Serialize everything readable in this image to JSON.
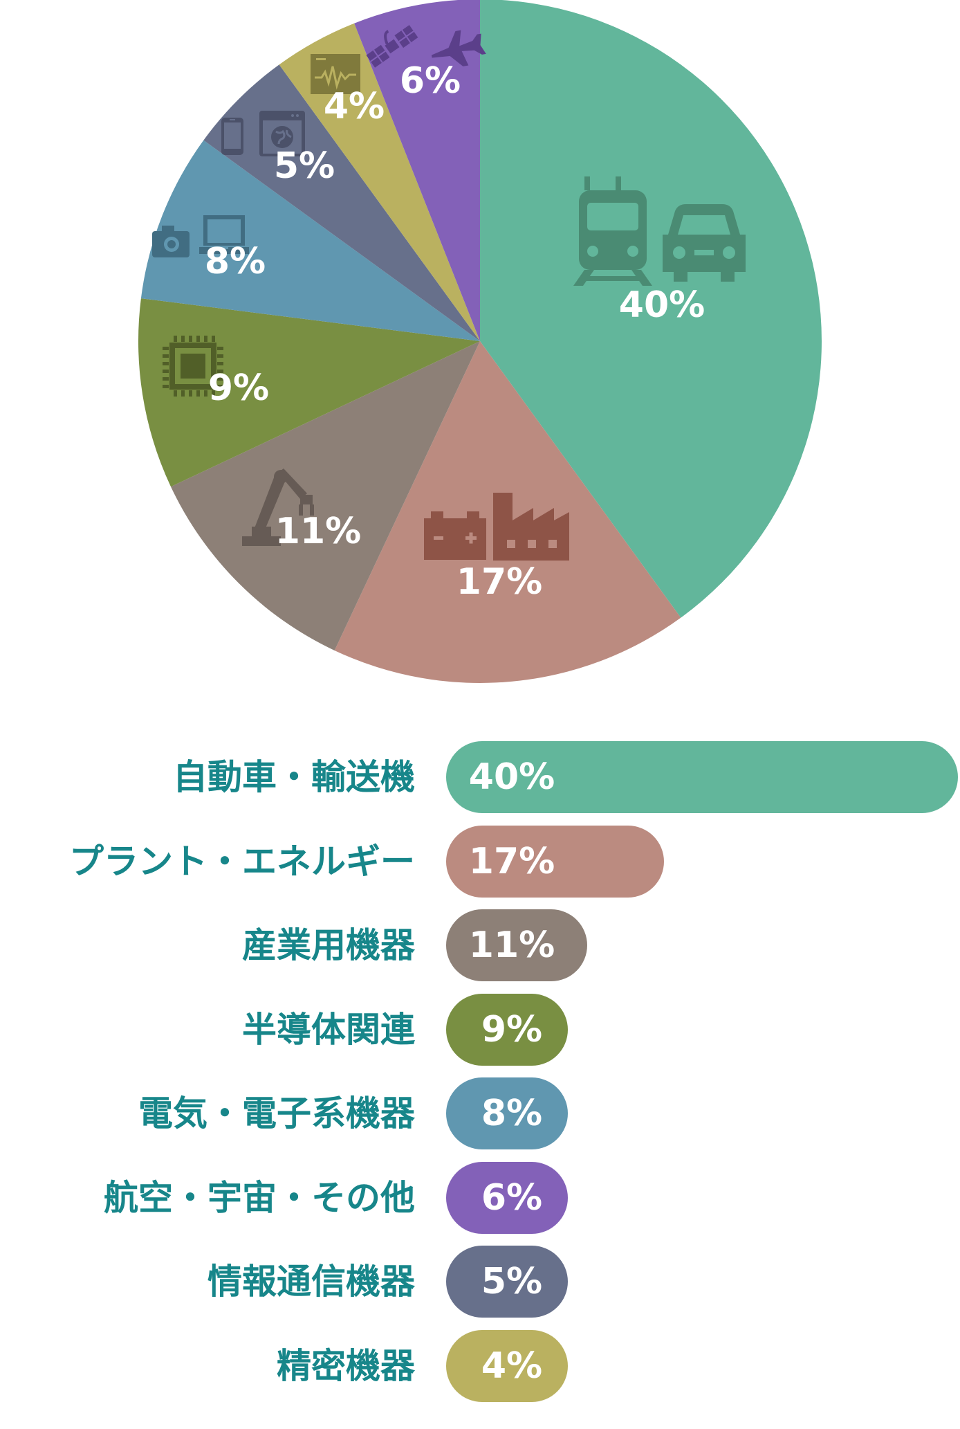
{
  "chart_data": [
    {
      "type": "pie",
      "slices": [
        {
          "key": "auto",
          "label": "自動車・輸送機",
          "value": 40,
          "value_label": "40%",
          "color": "#62b69b",
          "icons": [
            "train-icon",
            "car-icon"
          ],
          "icon_color": "#4a8b73"
        },
        {
          "key": "plant",
          "label": "プラント・エネルギー",
          "value": 17,
          "value_label": "17%",
          "color": "#bb8b80",
          "icons": [
            "battery-icon",
            "factory-icon"
          ],
          "icon_color": "#8e5447"
        },
        {
          "key": "industrial",
          "label": "産業用機器",
          "value": 11,
          "value_label": "11%",
          "color": "#8d8077",
          "icons": [
            "robot-arm-icon"
          ],
          "icon_color": "#665b55"
        },
        {
          "key": "semi",
          "label": "半導体関連",
          "value": 9,
          "value_label": "9%",
          "color": "#798f42",
          "icons": [
            "chip-icon"
          ],
          "icon_color": "#515f28"
        },
        {
          "key": "elec",
          "label": "電気・電子系機器",
          "value": 8,
          "value_label": "8%",
          "color": "#6097b0",
          "icons": [
            "camera-icon",
            "laptop-icon"
          ],
          "icon_color": "#416d82"
        },
        {
          "key": "info",
          "label": "情報通信機器",
          "value": 5,
          "value_label": "5%",
          "color": "#67708b",
          "icons": [
            "phone-icon",
            "browser-globe-icon"
          ],
          "icon_color": "#4b5169"
        },
        {
          "key": "precision",
          "label": "精密機器",
          "value": 4,
          "value_label": "4%",
          "color": "#bab160",
          "icons": [
            "monitor-waveform-icon"
          ],
          "icon_color": "#807a3c"
        },
        {
          "key": "aero",
          "label": "航空・宇宙・その他",
          "value": 6,
          "value_label": "6%",
          "color": "#8361b8",
          "icons": [
            "satellite-icon",
            "airplane-icon"
          ],
          "icon_color": "#5b3f8a"
        }
      ]
    },
    {
      "type": "bar",
      "orientation": "horizontal",
      "categories": [
        "自動車・輸送機",
        "プラント・エネルギー",
        "産業用機器",
        "半導体関連",
        "電気・電子系機器",
        "航空・宇宙・その他",
        "情報通信機器",
        "精密機器"
      ],
      "values": [
        40,
        17,
        11,
        9,
        8,
        6,
        5,
        4
      ],
      "value_labels": [
        "40%",
        "17%",
        "11%",
        "9%",
        "8%",
        "6%",
        "5%",
        "4%"
      ],
      "colors": [
        "#62b69b",
        "#bb8b80",
        "#8d8077",
        "#798f42",
        "#6097b0",
        "#8361b8",
        "#67708b",
        "#bab160"
      ],
      "label_color": "#17868a"
    }
  ]
}
